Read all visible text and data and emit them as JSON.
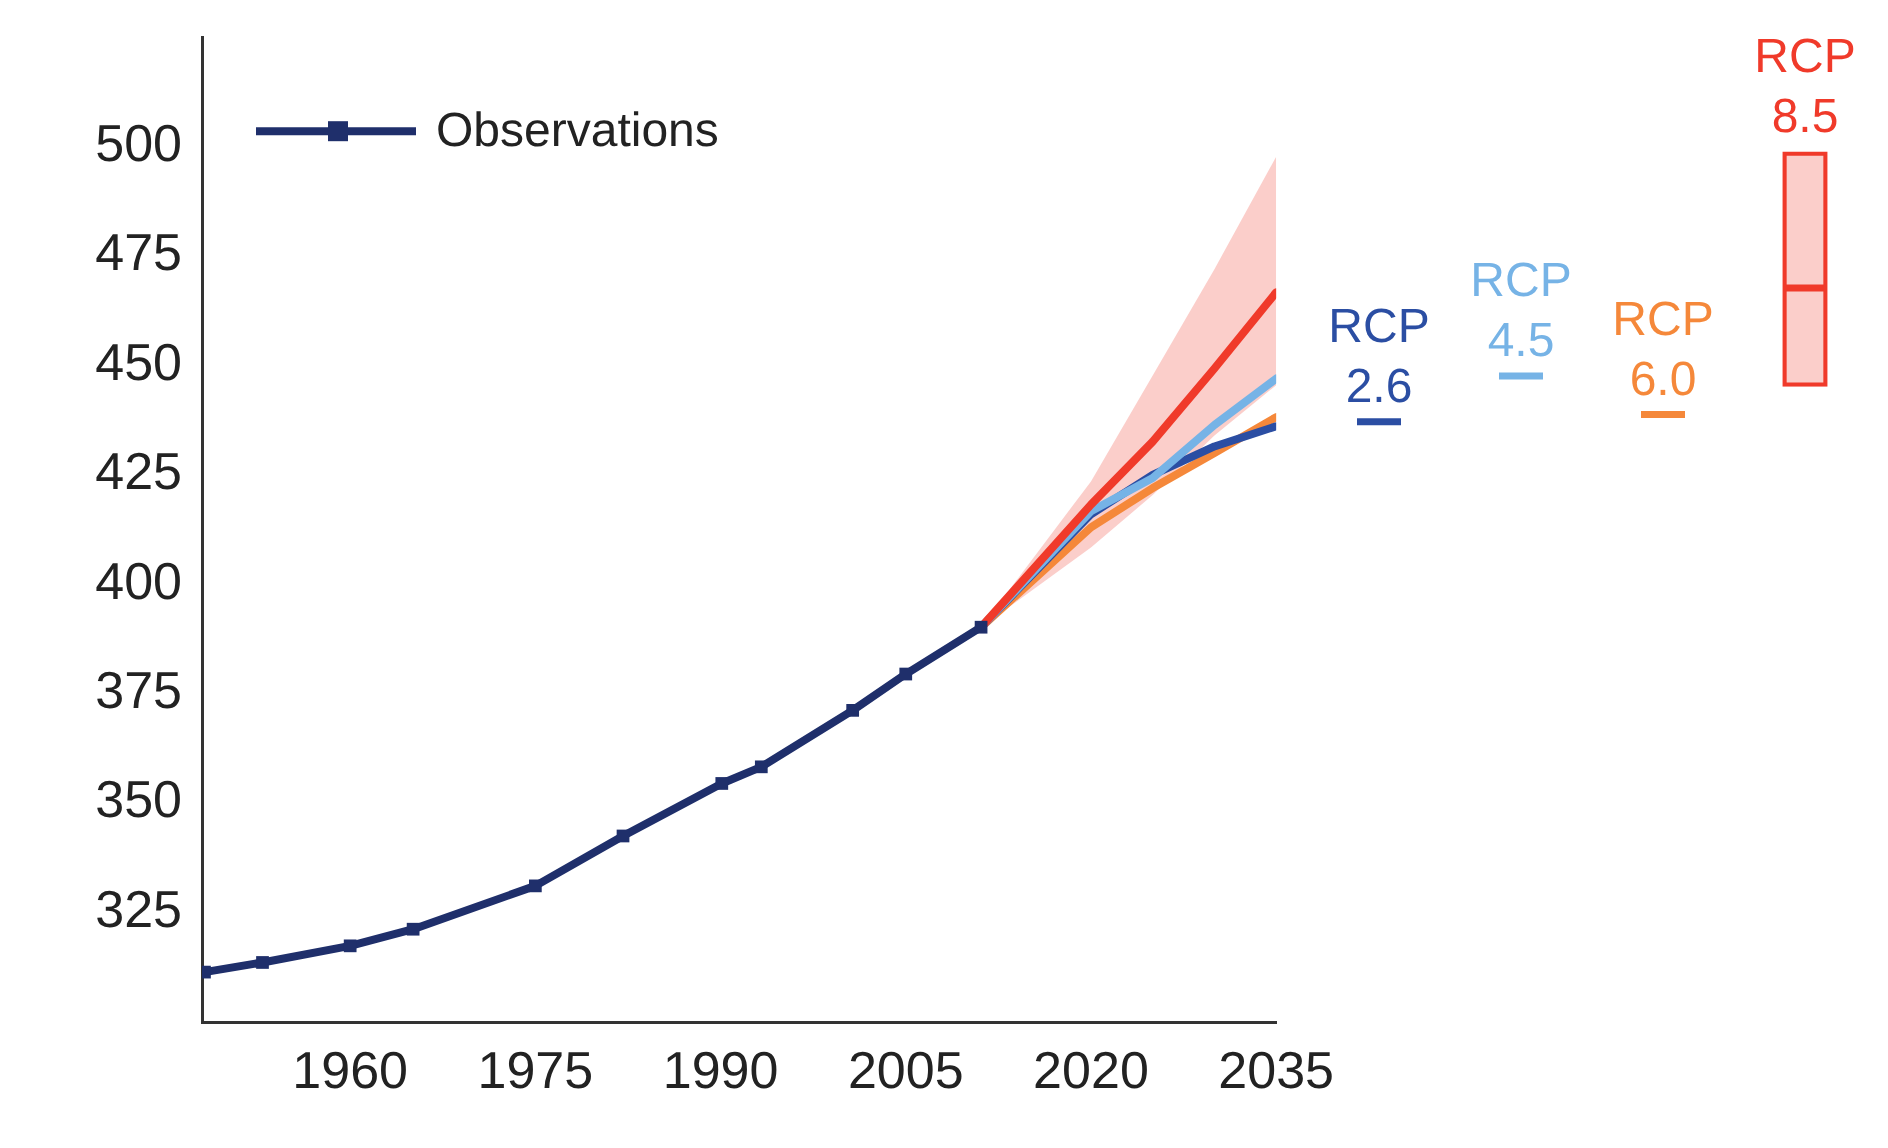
{
  "chart_data": [
    {
      "type": "line",
      "xlim": [
        1948,
        2035
      ],
      "xticks": [
        1960,
        1975,
        1990,
        2005,
        2020,
        2035
      ],
      "ylim": [
        300,
        525
      ],
      "yticks": [
        325,
        350,
        375,
        400,
        425,
        450,
        475,
        500
      ],
      "grid": false,
      "legend": "top left",
      "series": [
        {
          "name": "Observations",
          "color": "#1f2f6b",
          "marker": "square",
          "x": [
            1948.2,
            1952.9,
            1960,
            1965.1,
            1975,
            1982.1,
            1990.1,
            1993.3,
            2000.7,
            2005,
            2011.1
          ],
          "values": [
            311.4,
            313.6,
            317.4,
            321.2,
            331.1,
            342.5,
            354.5,
            358.3,
            371.2,
            379.5,
            390.2
          ]
        },
        {
          "color": "#f03a2a",
          "x": [
            2011.1,
            2020,
            2025,
            2030,
            2035
          ],
          "values": [
            390.2,
            418.2,
            432.6,
            449.3,
            466.7
          ],
          "lower": [
            390.2,
            408.4,
            420.4,
            434,
            445.5
          ],
          "upper": [
            390.2,
            423.5,
            447.7,
            472,
            497.7
          ]
        },
        {
          "color": "#76b3e6",
          "x": [
            2011.1,
            2020,
            2025,
            2030,
            2035
          ],
          "values": [
            390.2,
            416.7,
            424.3,
            436.4,
            447
          ]
        },
        {
          "color": "#2b4ea3",
          "x": [
            2011.1,
            2020,
            2025,
            2030,
            2035
          ],
          "values": [
            390.2,
            416,
            425,
            431.5,
            436.1
          ]
        },
        {
          "color": "#f5883a",
          "x": [
            2011.1,
            2020,
            2025,
            2030,
            2035
          ],
          "values": [
            390.2,
            413,
            422,
            430,
            438.2
          ]
        }
      ]
    },
    {
      "type": "box",
      "categories": [
        "RCP 2.6",
        "RCP 4.5",
        "RCP 6.0",
        "RCP 8.5"
      ],
      "yticks": [
        325,
        350,
        375,
        400,
        425,
        450,
        475,
        500
      ],
      "tick_labels": false,
      "colors": [
        "#2b4ea3",
        "#76b3e6",
        "#f5883a",
        "#f03a2a"
      ],
      "boxes": [
        {
          "low": 437,
          "q1": 437,
          "median": 437,
          "q3": 437,
          "high": 437
        },
        {
          "low": 447.4,
          "q1": 447.4,
          "median": 447.4,
          "q3": 447.4,
          "high": 447.4
        },
        {
          "low": 438.6,
          "q1": 438.6,
          "median": 438.6,
          "q3": 438.6,
          "high": 438.6
        },
        {
          "low": 445.1,
          "q1": 445.1,
          "median": 467.5,
          "q3": 498.5,
          "high": 498.5
        }
      ]
    }
  ]
}
